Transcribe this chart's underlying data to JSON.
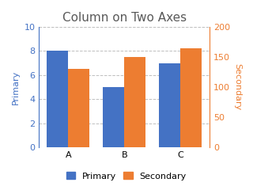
{
  "title": "Column on Two Axes",
  "categories": [
    "A",
    "B",
    "C"
  ],
  "primary_values": [
    8,
    5,
    7
  ],
  "secondary_values": [
    130,
    150,
    165
  ],
  "primary_color": "#4472C4",
  "secondary_color": "#ED7D31",
  "primary_label": "Primary",
  "secondary_label": "Secondary",
  "primary_ylim": [
    0,
    10
  ],
  "primary_yticks": [
    0,
    2,
    4,
    6,
    8,
    10
  ],
  "secondary_ylim": [
    0,
    200
  ],
  "secondary_yticks": [
    0,
    50,
    100,
    150,
    200
  ],
  "primary_axis_color": "#4472C4",
  "secondary_axis_color": "#ED7D31",
  "title_fontsize": 11,
  "label_fontsize": 8,
  "tick_fontsize": 8,
  "bar_width": 0.38,
  "background_color": "#FFFFFF",
  "grid_color": "#BFBFBF",
  "grid_style": "--",
  "title_color": "#595959"
}
